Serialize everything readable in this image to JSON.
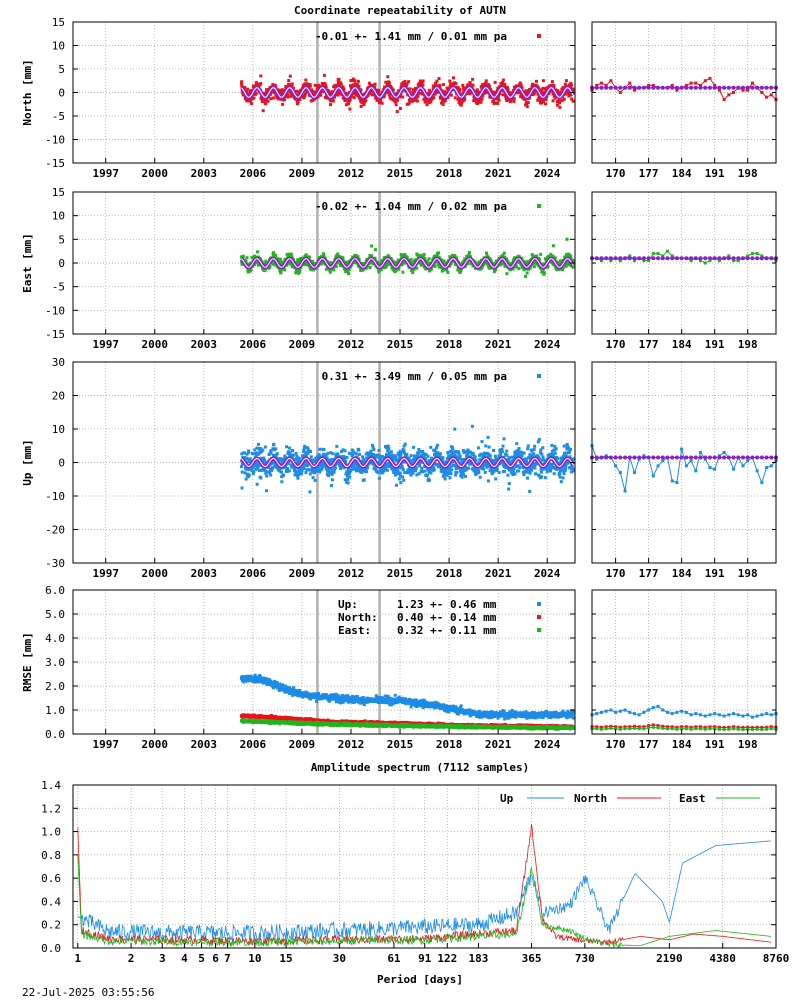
{
  "title": "Coordinate repeatability of AUTN",
  "timestamp": "22-Jul-2025 03:55:56",
  "colors": {
    "north": "#e8141c",
    "east": "#22b41e",
    "up": "#1c8ce6",
    "model": "#8b1fc8",
    "model_core": "#ffffff",
    "event": "#b0b0b0"
  },
  "chart_data": [
    {
      "type": "scatter",
      "panel": "north",
      "ylabel": "North [mm]",
      "legend": "-0.01 +- 1.41 mm /  0.01 mm pa",
      "xlim": [
        1995.0,
        2025.7
      ],
      "ylim": [
        -15,
        15
      ],
      "yticks": [
        -15,
        -10,
        -5,
        0,
        5,
        10,
        15
      ],
      "xticks": [
        1997,
        2000,
        2003,
        2006,
        2009,
        2012,
        2015,
        2018,
        2021,
        2024
      ],
      "events": [
        2009.95,
        2013.75
      ],
      "data_start": 2005.3,
      "data_end": 2025.6,
      "scatter_sd": 1.41,
      "seasonal_amp": 1.0,
      "zoom": {
        "xticks": [
          170,
          177,
          184,
          191,
          198
        ],
        "xlim": [
          165,
          204
        ],
        "values": [
          0.5,
          1.5,
          2.0,
          1.5,
          2.5,
          1.0,
          0.0,
          1.0,
          2.0,
          0.5,
          1.0,
          1.0,
          1.5,
          1.5,
          1.0,
          1.0,
          1.0,
          1.5,
          0.5,
          1.0,
          1.5,
          2.0,
          2.0,
          1.5,
          2.5,
          3.0,
          1.5,
          0.5,
          -1.5,
          -0.5,
          0.0,
          1.0,
          0.5,
          0.5,
          2.0,
          1.0,
          0.0,
          -1.0,
          -0.5,
          -1.5
        ]
      }
    },
    {
      "type": "scatter",
      "panel": "east",
      "ylabel": "East [mm]",
      "legend": "-0.02 +- 1.04 mm /  0.02 mm pa",
      "xlim": [
        1995.0,
        2025.7
      ],
      "ylim": [
        -15,
        15
      ],
      "yticks": [
        -15,
        -10,
        -5,
        0,
        5,
        10,
        15
      ],
      "xticks": [
        1997,
        2000,
        2003,
        2006,
        2009,
        2012,
        2015,
        2018,
        2021,
        2024
      ],
      "events": [
        2009.95,
        2013.75
      ],
      "data_start": 2005.3,
      "data_end": 2025.6,
      "scatter_sd": 1.04,
      "seasonal_amp": 0.9,
      "zoom": {
        "xticks": [
          170,
          177,
          184,
          191,
          198
        ],
        "xlim": [
          165,
          204
        ],
        "values": [
          1.0,
          1.0,
          0.5,
          1.0,
          0.5,
          1.0,
          0.5,
          1.0,
          1.5,
          0.5,
          1.0,
          0.5,
          0.5,
          2.0,
          2.0,
          1.5,
          2.5,
          1.5,
          1.0,
          1.0,
          1.0,
          0.5,
          1.0,
          0.5,
          0.0,
          0.5,
          1.0,
          0.5,
          1.0,
          1.5,
          0.5,
          0.5,
          1.0,
          1.5,
          2.0,
          2.0,
          1.5,
          1.0,
          1.0,
          0.5
        ]
      }
    },
    {
      "type": "scatter",
      "panel": "up",
      "ylabel": "Up [mm]",
      "legend": "0.31 +- 3.49 mm /  0.05 mm pa",
      "xlim": [
        1995.0,
        2025.7
      ],
      "ylim": [
        -30,
        30
      ],
      "yticks": [
        -30,
        -20,
        -10,
        0,
        10,
        20,
        30
      ],
      "xticks": [
        1997,
        2000,
        2003,
        2006,
        2009,
        2012,
        2015,
        2018,
        2021,
        2024
      ],
      "events": [
        2009.95,
        2013.75
      ],
      "data_start": 2005.3,
      "data_end": 2025.6,
      "scatter_sd": 3.49,
      "seasonal_amp": 1.2,
      "zoom": {
        "xticks": [
          170,
          177,
          184,
          191,
          198
        ],
        "xlim": [
          165,
          204
        ],
        "values": [
          5.0,
          1.0,
          1.5,
          2.0,
          1.5,
          -1.0,
          -3.0,
          -8.5,
          1.5,
          -3.0,
          1.0,
          2.0,
          1.5,
          -4.0,
          -1.0,
          0.5,
          1.5,
          -5.5,
          -6.0,
          4.0,
          -1.0,
          0.5,
          -2.5,
          3.0,
          1.0,
          -1.5,
          -2.0,
          2.0,
          3.0,
          1.5,
          -2.0,
          1.5,
          -1.0,
          0.5,
          1.5,
          -2.5,
          -6.0,
          -1.5,
          -1.0,
          0.5
        ]
      }
    },
    {
      "type": "scatter",
      "panel": "rmse",
      "ylabel": "RMSE [mm]",
      "xlim": [
        1995.0,
        2025.7
      ],
      "ylim": [
        0,
        6
      ],
      "yticks": [
        0.0,
        1.0,
        2.0,
        3.0,
        4.0,
        5.0,
        6.0
      ],
      "xticks": [
        1997,
        2000,
        2003,
        2006,
        2009,
        2012,
        2015,
        2018,
        2021,
        2024
      ],
      "events": [
        2009.95,
        2013.75
      ],
      "data_start": 2005.3,
      "data_end": 2025.6,
      "legend_rows": [
        {
          "name": "Up:",
          "stats": "1.23 +- 0.46 mm",
          "color": "up"
        },
        {
          "name": "North:",
          "stats": "0.40 +- 0.14 mm",
          "color": "north"
        },
        {
          "name": "East:",
          "stats": "0.32 +- 0.11 mm",
          "color": "east"
        }
      ],
      "trend": {
        "up": [
          [
            2005.3,
            2.3
          ],
          [
            2006.5,
            2.3
          ],
          [
            2007.5,
            2.0
          ],
          [
            2008.5,
            1.75
          ],
          [
            2009.5,
            1.6
          ],
          [
            2011.0,
            1.5
          ],
          [
            2013.0,
            1.4
          ],
          [
            2015.0,
            1.4
          ],
          [
            2017.0,
            1.2
          ],
          [
            2018.5,
            1.0
          ],
          [
            2019.5,
            0.85
          ],
          [
            2021.0,
            0.8
          ],
          [
            2025.6,
            0.8
          ]
        ],
        "north": [
          [
            2005.3,
            0.75
          ],
          [
            2007.0,
            0.7
          ],
          [
            2009.0,
            0.6
          ],
          [
            2011.0,
            0.5
          ],
          [
            2015.0,
            0.45
          ],
          [
            2019.0,
            0.35
          ],
          [
            2025.6,
            0.3
          ]
        ],
        "east": [
          [
            2005.3,
            0.55
          ],
          [
            2007.0,
            0.5
          ],
          [
            2009.0,
            0.45
          ],
          [
            2011.0,
            0.4
          ],
          [
            2015.0,
            0.35
          ],
          [
            2019.0,
            0.3
          ],
          [
            2025.6,
            0.25
          ]
        ]
      },
      "zoom": {
        "xticks": [
          170,
          177,
          184,
          191,
          198
        ],
        "xlim": [
          165,
          204
        ],
        "up": [
          0.8,
          0.85,
          0.9,
          0.95,
          1.0,
          0.9,
          0.95,
          1.0,
          0.9,
          0.85,
          0.8,
          0.9,
          1.0,
          1.1,
          1.15,
          1.0,
          0.9,
          0.85,
          0.9,
          0.95,
          0.9,
          0.8,
          0.85,
          0.8,
          0.75,
          0.8,
          0.85,
          0.8,
          0.75,
          0.8,
          0.85,
          0.8,
          0.75,
          0.8,
          0.7,
          0.75,
          0.8,
          0.85,
          0.8,
          0.85
        ],
        "north": [
          0.3,
          0.3,
          0.28,
          0.3,
          0.32,
          0.3,
          0.28,
          0.3,
          0.3,
          0.32,
          0.3,
          0.3,
          0.35,
          0.38,
          0.35,
          0.32,
          0.3,
          0.3,
          0.28,
          0.3,
          0.3,
          0.28,
          0.3,
          0.3,
          0.28,
          0.3,
          0.3,
          0.28,
          0.27,
          0.28,
          0.3,
          0.28,
          0.27,
          0.28,
          0.27,
          0.28,
          0.27,
          0.28,
          0.3,
          0.28
        ],
        "east": [
          0.22,
          0.22,
          0.2,
          0.22,
          0.24,
          0.22,
          0.2,
          0.22,
          0.22,
          0.24,
          0.22,
          0.22,
          0.26,
          0.28,
          0.26,
          0.24,
          0.22,
          0.22,
          0.2,
          0.22,
          0.22,
          0.2,
          0.22,
          0.22,
          0.2,
          0.22,
          0.22,
          0.2,
          0.19,
          0.2,
          0.22,
          0.2,
          0.19,
          0.2,
          0.19,
          0.2,
          0.19,
          0.2,
          0.22,
          0.2
        ]
      }
    },
    {
      "type": "line",
      "panel": "spectrum",
      "title": "Amplitude spectrum (7112 samples)",
      "xlabel": "Period [days]",
      "ylim": [
        0,
        1.4
      ],
      "yticks": [
        0.0,
        0.2,
        0.4,
        0.6,
        0.8,
        1.0,
        1.2,
        1.4
      ],
      "xscale": "log",
      "xlim": [
        0.94,
        8760
      ],
      "xticks": [
        1,
        2,
        3,
        4,
        5,
        6,
        7,
        10,
        15,
        30,
        61,
        91,
        122,
        183,
        365,
        730,
        2190,
        4380,
        8760
      ],
      "legend": [
        "Up",
        "North",
        "East"
      ],
      "series": [
        {
          "name": "Up",
          "color": "up",
          "noise": 0.1,
          "points": [
            [
              1.0,
              0.27
            ],
            [
              1.5,
              0.14
            ],
            [
              3,
              0.13
            ],
            [
              10,
              0.13
            ],
            [
              30,
              0.15
            ],
            [
              91,
              0.18
            ],
            [
              183,
              0.2
            ],
            [
              300,
              0.3
            ],
            [
              365,
              0.64
            ],
            [
              420,
              0.3
            ],
            [
              600,
              0.37
            ],
            [
              730,
              0.6
            ],
            [
              1000,
              0.15
            ],
            [
              1400,
              0.64
            ],
            [
              2000,
              0.4
            ],
            [
              2190,
              0.22
            ],
            [
              2600,
              0.73
            ],
            [
              4000,
              0.88
            ],
            [
              8200,
              0.92
            ]
          ]
        },
        {
          "name": "North",
          "color": "north",
          "noise": 0.05,
          "points": [
            [
              1.0,
              1.04
            ],
            [
              1.05,
              0.15
            ],
            [
              1.5,
              0.08
            ],
            [
              10,
              0.06
            ],
            [
              91,
              0.08
            ],
            [
              300,
              0.15
            ],
            [
              365,
              1.05
            ],
            [
              420,
              0.25
            ],
            [
              500,
              0.1
            ],
            [
              730,
              0.06
            ],
            [
              1000,
              0.05
            ],
            [
              1500,
              0.1
            ],
            [
              2190,
              0.07
            ],
            [
              3000,
              0.12
            ],
            [
              4380,
              0.1
            ],
            [
              8200,
              0.05
            ]
          ]
        },
        {
          "name": "East",
          "color": "east",
          "noise": 0.05,
          "points": [
            [
              1.0,
              0.8
            ],
            [
              1.05,
              0.12
            ],
            [
              1.5,
              0.06
            ],
            [
              10,
              0.05
            ],
            [
              91,
              0.07
            ],
            [
              300,
              0.12
            ],
            [
              365,
              0.69
            ],
            [
              420,
              0.2
            ],
            [
              600,
              0.15
            ],
            [
              730,
              0.08
            ],
            [
              1000,
              0.03
            ],
            [
              1500,
              0.02
            ],
            [
              2190,
              0.1
            ],
            [
              4000,
              0.15
            ],
            [
              8200,
              0.1
            ]
          ]
        }
      ]
    }
  ]
}
